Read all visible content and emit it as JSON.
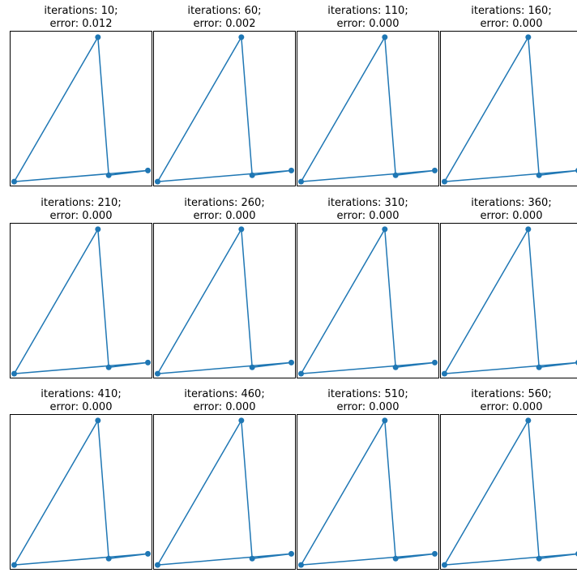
{
  "colors": {
    "line": "#1f77b4",
    "marker": "#1f77b4",
    "frame": "#000000",
    "background": "#ffffff"
  },
  "chart_data": [
    {
      "type": "line",
      "title_iter": "iterations: 10;",
      "title_err": "error: 0.012",
      "x": [
        0.0,
        0.62,
        0.7,
        0.99,
        0.0
      ],
      "y": [
        0.0,
        0.91,
        0.04,
        0.07,
        0.0
      ],
      "xlim": [
        -0.03,
        1.02
      ],
      "ylim": [
        -0.03,
        0.95
      ],
      "ticks": false,
      "marker": "circle"
    },
    {
      "type": "line",
      "title_iter": "iterations: 60;",
      "title_err": "error: 0.002",
      "x": [
        0.0,
        0.62,
        0.7,
        0.99,
        0.0
      ],
      "y": [
        0.0,
        0.91,
        0.04,
        0.07,
        0.0
      ],
      "xlim": [
        -0.03,
        1.02
      ],
      "ylim": [
        -0.03,
        0.95
      ],
      "ticks": false,
      "marker": "circle"
    },
    {
      "type": "line",
      "title_iter": "iterations: 110;",
      "title_err": "error: 0.000",
      "x": [
        0.0,
        0.62,
        0.7,
        0.99,
        0.0
      ],
      "y": [
        0.0,
        0.91,
        0.04,
        0.07,
        0.0
      ],
      "xlim": [
        -0.03,
        1.02
      ],
      "ylim": [
        -0.03,
        0.95
      ],
      "ticks": false,
      "marker": "circle"
    },
    {
      "type": "line",
      "title_iter": "iterations: 160;",
      "title_err": "error: 0.000",
      "x": [
        0.0,
        0.62,
        0.7,
        0.99,
        0.0
      ],
      "y": [
        0.0,
        0.91,
        0.04,
        0.07,
        0.0
      ],
      "xlim": [
        -0.03,
        1.02
      ],
      "ylim": [
        -0.03,
        0.95
      ],
      "ticks": false,
      "marker": "circle"
    },
    {
      "type": "line",
      "title_iter": "iterations: 210;",
      "title_err": "error: 0.000",
      "x": [
        0.0,
        0.62,
        0.7,
        0.99,
        0.0
      ],
      "y": [
        0.0,
        0.91,
        0.04,
        0.07,
        0.0
      ],
      "xlim": [
        -0.03,
        1.02
      ],
      "ylim": [
        -0.03,
        0.95
      ],
      "ticks": false,
      "marker": "circle"
    },
    {
      "type": "line",
      "title_iter": "iterations: 260;",
      "title_err": "error: 0.000",
      "x": [
        0.0,
        0.62,
        0.7,
        0.99,
        0.0
      ],
      "y": [
        0.0,
        0.91,
        0.04,
        0.07,
        0.0
      ],
      "xlim": [
        -0.03,
        1.02
      ],
      "ylim": [
        -0.03,
        0.95
      ],
      "ticks": false,
      "marker": "circle"
    },
    {
      "type": "line",
      "title_iter": "iterations: 310;",
      "title_err": "error: 0.000",
      "x": [
        0.0,
        0.62,
        0.7,
        0.99,
        0.0
      ],
      "y": [
        0.0,
        0.91,
        0.04,
        0.07,
        0.0
      ],
      "xlim": [
        -0.03,
        1.02
      ],
      "ylim": [
        -0.03,
        0.95
      ],
      "ticks": false,
      "marker": "circle"
    },
    {
      "type": "line",
      "title_iter": "iterations: 360;",
      "title_err": "error: 0.000",
      "x": [
        0.0,
        0.62,
        0.7,
        0.99,
        0.0
      ],
      "y": [
        0.0,
        0.91,
        0.04,
        0.07,
        0.0
      ],
      "xlim": [
        -0.03,
        1.02
      ],
      "ylim": [
        -0.03,
        0.95
      ],
      "ticks": false,
      "marker": "circle"
    },
    {
      "type": "line",
      "title_iter": "iterations: 410;",
      "title_err": "error: 0.000",
      "x": [
        0.0,
        0.62,
        0.7,
        0.99,
        0.0
      ],
      "y": [
        0.0,
        0.91,
        0.04,
        0.07,
        0.0
      ],
      "xlim": [
        -0.03,
        1.02
      ],
      "ylim": [
        -0.03,
        0.95
      ],
      "ticks": false,
      "marker": "circle"
    },
    {
      "type": "line",
      "title_iter": "iterations: 460;",
      "title_err": "error: 0.000",
      "x": [
        0.0,
        0.62,
        0.7,
        0.99,
        0.0
      ],
      "y": [
        0.0,
        0.91,
        0.04,
        0.07,
        0.0
      ],
      "xlim": [
        -0.03,
        1.02
      ],
      "ylim": [
        -0.03,
        0.95
      ],
      "ticks": false,
      "marker": "circle"
    },
    {
      "type": "line",
      "title_iter": "iterations: 510;",
      "title_err": "error: 0.000",
      "x": [
        0.0,
        0.62,
        0.7,
        0.99,
        0.0
      ],
      "y": [
        0.0,
        0.91,
        0.04,
        0.07,
        0.0
      ],
      "xlim": [
        -0.03,
        1.02
      ],
      "ylim": [
        -0.03,
        0.95
      ],
      "ticks": false,
      "marker": "circle"
    },
    {
      "type": "line",
      "title_iter": "iterations: 560;",
      "title_err": "error: 0.000",
      "x": [
        0.0,
        0.62,
        0.7,
        0.99,
        0.0
      ],
      "y": [
        0.0,
        0.91,
        0.04,
        0.07,
        0.0
      ],
      "xlim": [
        -0.03,
        1.02
      ],
      "ylim": [
        -0.03,
        0.95
      ],
      "ticks": false,
      "marker": "circle"
    }
  ]
}
